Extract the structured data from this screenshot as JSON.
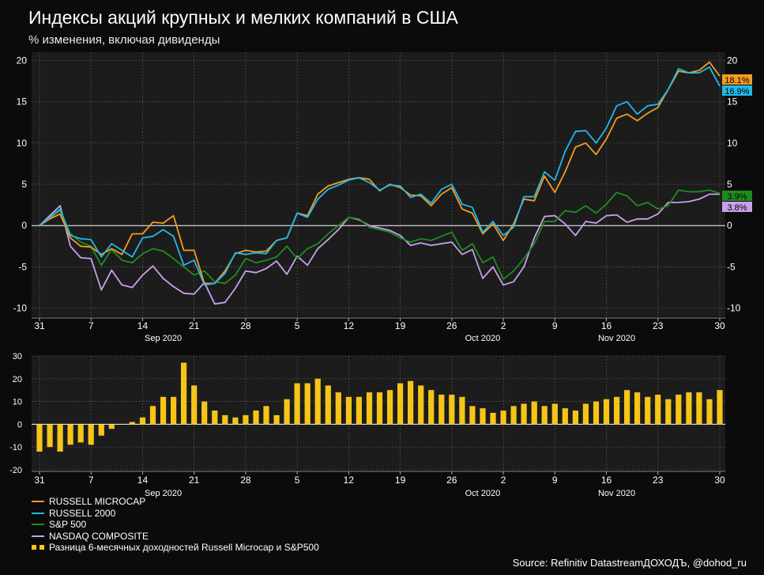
{
  "header": {
    "title": "Индексы акций крупных и мелких компаний в США",
    "subtitle": "% изменения, включая дивиденды"
  },
  "footer": {
    "source": "Source: Refinitiv DatastreamДОХОДЪ, @dohod_ru"
  },
  "colors": {
    "background": "#0b0b0b",
    "plot_background": "#1c1c1c",
    "grid": "#555555",
    "russell_microcap": "#f39c21",
    "russell_2000": "#21b9e8",
    "sp500": "#1f8c1f",
    "nasdaq": "#c9a0ec",
    "spread_bars": "#f5c518"
  },
  "x_axis": {
    "ticks": [
      "31",
      "7",
      "14",
      "21",
      "28",
      "5",
      "12",
      "19",
      "26",
      "2",
      "9",
      "16",
      "23",
      "30"
    ],
    "months": [
      "Sep 2020",
      "Oct 2020",
      "Nov 2020"
    ]
  },
  "chart_data": [
    {
      "type": "line",
      "ylim": [
        -11,
        21
      ],
      "yticks": [
        20,
        15,
        10,
        5,
        0,
        -5,
        -10
      ],
      "grid": true,
      "end_labels": [
        {
          "series": "RUSSELL MICROCAP",
          "text": "18.1%"
        },
        {
          "series": "RUSSELL 2000",
          "text": "16.9%"
        },
        {
          "series": "S&P 500",
          "text": "3.9%"
        },
        {
          "series": "NASDAQ COMPOSITE",
          "text": "3.8%"
        }
      ],
      "series": [
        {
          "name": "RUSSELL MICROCAP",
          "color": "#f39c21",
          "values": [
            0,
            0.8,
            1.4,
            -1.5,
            -2.5,
            -2.6,
            -3.5,
            -2.8,
            -3.5,
            -1.0,
            -1.0,
            0.4,
            0.3,
            1.2,
            -3.0,
            -3.0,
            -7.0,
            -7.0,
            -5.5,
            -3.4,
            -3.0,
            -3.2,
            -3.1,
            -1.8,
            -1.5,
            1.5,
            1.2,
            3.8,
            4.8,
            5.2,
            5.6,
            5.8,
            5.6,
            4.2,
            5.0,
            4.6,
            3.7,
            3.6,
            2.4,
            3.8,
            4.6,
            2.0,
            1.5,
            -1.0,
            0.2,
            -1.8,
            0.2,
            3.2,
            3.0,
            6.0,
            4.0,
            6.5,
            9.5,
            10.0,
            8.6,
            10.5,
            13.0,
            13.5,
            12.7,
            13.6,
            14.3,
            16.5,
            18.7,
            18.5,
            18.8,
            19.8,
            18.1
          ]
        },
        {
          "name": "RUSSELL 2000",
          "color": "#21b9e8",
          "values": [
            0,
            1.0,
            2.0,
            -1.2,
            -1.6,
            -1.7,
            -3.8,
            -2.2,
            -3.0,
            -3.8,
            -1.5,
            -1.3,
            -0.5,
            -1.3,
            -4.8,
            -4.2,
            -7.2,
            -7.0,
            -5.8,
            -3.3,
            -3.5,
            -3.3,
            -3.4,
            -1.8,
            -1.5,
            1.5,
            1.0,
            3.2,
            4.4,
            4.9,
            5.5,
            5.8,
            5.2,
            4.3,
            4.9,
            4.8,
            3.4,
            3.8,
            2.7,
            4.4,
            5.0,
            2.6,
            2.2,
            -0.8,
            0.5,
            -1.2,
            -0.2,
            3.5,
            3.5,
            6.5,
            5.5,
            9.0,
            11.4,
            11.5,
            10.0,
            11.8,
            14.5,
            15.0,
            13.5,
            14.5,
            14.7,
            16.5,
            19.0,
            18.5,
            18.5,
            19.2,
            16.9
          ]
        },
        {
          "name": "S&P 500",
          "color": "#1f8c1f",
          "values": [
            0,
            0.9,
            1.8,
            -1.0,
            -2.0,
            -2.5,
            -4.8,
            -2.9,
            -4.2,
            -4.5,
            -3.4,
            -2.8,
            -3.1,
            -4.0,
            -5.0,
            -6.0,
            -5.5,
            -6.8,
            -7.0,
            -6.0,
            -4.0,
            -4.5,
            -4.2,
            -3.8,
            -2.5,
            -4.0,
            -2.8,
            -2.2,
            -1.0,
            0.0,
            1.0,
            0.8,
            -0.2,
            -0.5,
            -0.8,
            -1.5,
            -2.0,
            -1.6,
            -1.8,
            -1.3,
            -0.8,
            -3.0,
            -2.2,
            -4.5,
            -3.8,
            -6.5,
            -5.5,
            -4.0,
            -2.2,
            0.5,
            0.5,
            1.8,
            1.6,
            2.4,
            1.5,
            2.6,
            4.0,
            3.6,
            2.4,
            2.8,
            2.0,
            2.4,
            4.3,
            4.1,
            4.1,
            4.3,
            3.9
          ]
        },
        {
          "name": "NASDAQ COMPOSITE",
          "color": "#c9a0ec",
          "values": [
            0,
            1.2,
            2.4,
            -2.5,
            -3.9,
            -4.0,
            -7.8,
            -5.4,
            -7.2,
            -7.5,
            -6.0,
            -4.9,
            -6.4,
            -7.4,
            -8.2,
            -8.3,
            -6.9,
            -9.5,
            -9.3,
            -7.6,
            -5.5,
            -5.7,
            -5.2,
            -4.3,
            -5.9,
            -3.7,
            -4.8,
            -2.8,
            -1.7,
            -0.5,
            1.0,
            0.7,
            0.0,
            -0.3,
            -0.6,
            -1.2,
            -2.4,
            -2.1,
            -2.4,
            -2.2,
            -2.0,
            -3.5,
            -2.9,
            -6.4,
            -5.0,
            -7.2,
            -6.8,
            -5.0,
            -1.5,
            1.1,
            1.2,
            0.2,
            -1.2,
            0.5,
            0.3,
            1.2,
            1.3,
            0.4,
            0.8,
            0.8,
            1.4,
            2.8,
            2.8,
            2.9,
            3.2,
            3.8,
            3.8
          ]
        }
      ]
    },
    {
      "type": "bar",
      "ylim": [
        -20,
        30
      ],
      "yticks": [
        30,
        20,
        10,
        0,
        -10,
        -20
      ],
      "grid": true,
      "series": [
        {
          "name": "Разница 6-месячных доходностей Russell Microcap и S&P500",
          "color": "#f5c518",
          "values": [
            -12,
            -10,
            -12,
            -9,
            -8,
            -9,
            -5,
            -2,
            0,
            1,
            3,
            8,
            12,
            12,
            27,
            17,
            10,
            6,
            4,
            3,
            4,
            6,
            8,
            4,
            11,
            18,
            18,
            20,
            17,
            14,
            12,
            12,
            14,
            14,
            15,
            18,
            19,
            17,
            15,
            13,
            13,
            12,
            8,
            7,
            5,
            6,
            8,
            9,
            10,
            8,
            9,
            7,
            6,
            9,
            10,
            11,
            12,
            15,
            14,
            12,
            13,
            11,
            13,
            14,
            14,
            11,
            15
          ]
        }
      ]
    }
  ]
}
